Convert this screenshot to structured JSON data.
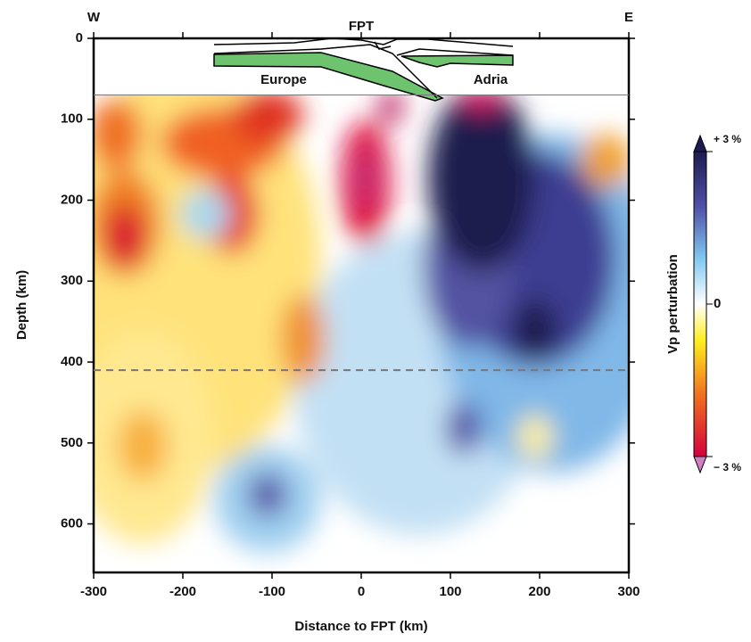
{
  "chart_data": {
    "type": "section",
    "side_labels": [
      "W",
      "E"
    ],
    "top_label": "FPT",
    "plate_labels": [
      "Europe",
      "Adria"
    ],
    "xlabel": "Distance to FPT (km)",
    "ylabel": "Depth (km)",
    "xlim": [
      -300,
      300
    ],
    "xticks": [
      -300,
      -200,
      -100,
      0,
      100,
      200,
      300
    ],
    "ylim": [
      0,
      660
    ],
    "yticks": [
      0,
      100,
      200,
      300,
      400,
      500,
      600
    ],
    "model_top_depth": 70,
    "reference_depth": 410,
    "colorbar_label": "Vp perturbation",
    "clim": [
      -3,
      3
    ],
    "cticks": [
      {
        "value": 3,
        "label": "+ 3 %"
      },
      0,
      {
        "value": -3,
        "label": "− 3 %"
      }
    ]
  }
}
